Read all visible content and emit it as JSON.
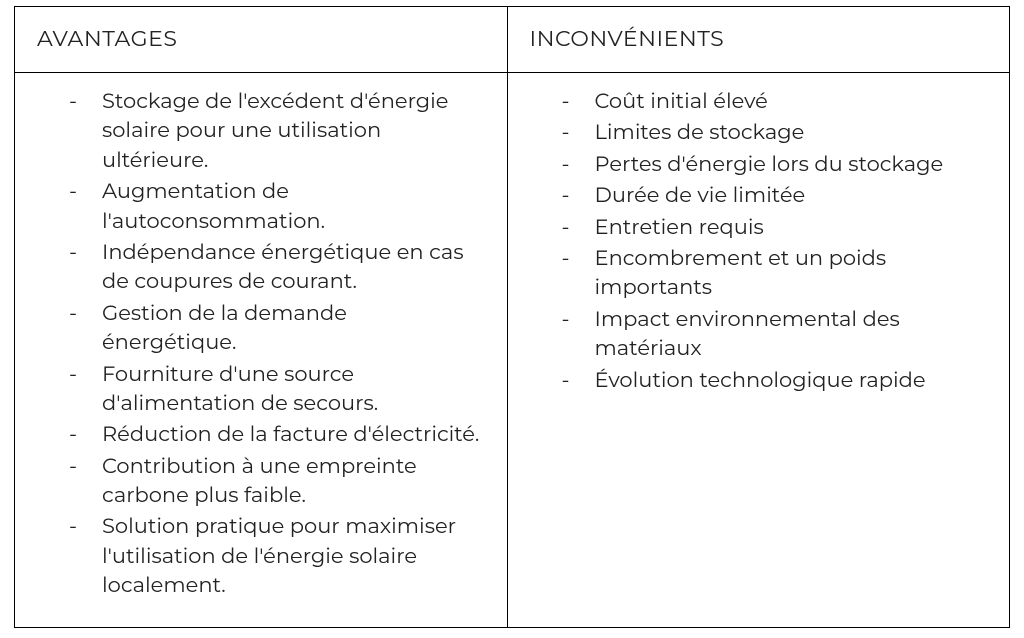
{
  "table": {
    "type": "comparison-table",
    "border_color": "#000000",
    "background_color": "#ffffff",
    "text_color": "#222222",
    "font_size_header": 22,
    "font_size_body": 21,
    "columns": [
      {
        "header": "AVANTAGES"
      },
      {
        "header": "INCONVÉNIENTS"
      }
    ],
    "left_items": [
      "Stockage de l'excédent d'énergie solaire pour une utilisation ultérieure.",
      "Augmentation de l'autoconsommation.",
      "Indépendance énergétique en cas de coupures de courant.",
      "Gestion de la demande énergétique.",
      "Fourniture d'une source d'alimentation de secours.",
      "Réduction de la facture d'électricité.",
      "Contribution à une empreinte carbone plus faible.",
      "Solution pratique pour maximiser l'utilisation de l'énergie solaire localement."
    ],
    "right_items": [
      "Coût initial élevé",
      "Limites de stockage",
      "Pertes d'énergie lors du stockage",
      "Durée de vie limitée",
      "Entretien requis",
      "Encombrement et un poids importants",
      "Impact environnemental des matériaux",
      "Évolution technologique rapide"
    ]
  }
}
